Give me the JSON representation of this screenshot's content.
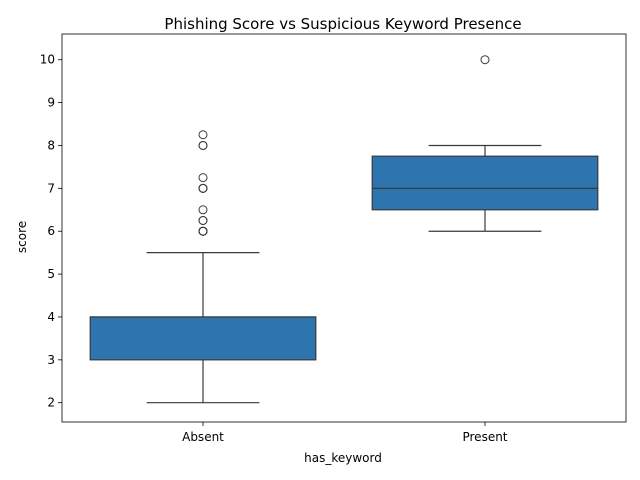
{
  "chart_data": {
    "type": "box",
    "title": "Phishing Score vs Suspicious Keyword Presence",
    "xlabel": "has_keyword",
    "ylabel": "score",
    "categories": [
      "Absent",
      "Present"
    ],
    "ylim": [
      1.55,
      10.6
    ],
    "yticks": [
      2,
      3,
      4,
      5,
      6,
      7,
      8,
      9,
      10
    ],
    "grid": false,
    "box_color": "#2e75b0",
    "line_color": "#3a3a3a",
    "boxes": [
      {
        "category": "Absent",
        "whisker_low": 2.0,
        "q1": 3.0,
        "median": 4.0,
        "q3": 4.0,
        "whisker_high": 5.5,
        "outliers": [
          6.0,
          6.0,
          6.0,
          6.0,
          6.25,
          6.25,
          6.5,
          7.0,
          7.0,
          7.0,
          7.25,
          8.0,
          8.0,
          8.25
        ]
      },
      {
        "category": "Present",
        "whisker_low": 6.0,
        "q1": 6.5,
        "median": 7.0,
        "q3": 7.75,
        "whisker_high": 8.0,
        "outliers": [
          10.0
        ]
      }
    ]
  }
}
